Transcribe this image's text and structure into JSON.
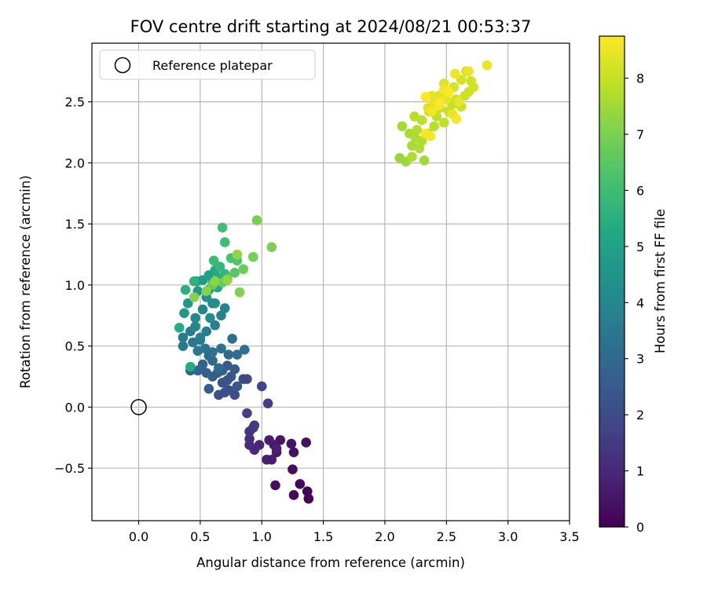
{
  "chart_data": {
    "type": "scatter",
    "title": "FOV centre drift starting at 2024/08/21 00:53:37",
    "xlabel": "Angular distance from reference (arcmin)",
    "ylabel": "Rotation from reference (arcmin)",
    "xlim": [
      -0.38,
      3.5
    ],
    "ylim": [
      -0.93,
      2.98
    ],
    "xticks": [
      0.0,
      0.5,
      1.0,
      1.5,
      2.0,
      2.5,
      3.0,
      3.5
    ],
    "xtick_labels": [
      "0.0",
      "0.5",
      "1.0",
      "1.5",
      "2.0",
      "2.5",
      "3.0",
      "3.5"
    ],
    "yticks": [
      -0.5,
      0.0,
      0.5,
      1.0,
      1.5,
      2.0,
      2.5
    ],
    "ytick_labels": [
      "−0.5",
      "0.0",
      "0.5",
      "1.0",
      "1.5",
      "2.0",
      "2.5"
    ],
    "grid": true,
    "legend": {
      "location": "upper-left",
      "entries": [
        "Reference platepar"
      ]
    },
    "reference_point": {
      "x": 0.0,
      "y": 0.0,
      "marker": "hollow-circle"
    },
    "colorbar": {
      "label": "Hours from first FF file",
      "colormap": "viridis",
      "range": [
        0,
        8.75
      ],
      "ticks": [
        0,
        1,
        2,
        3,
        4,
        5,
        6,
        7,
        8
      ],
      "tick_labels": [
        "0",
        "1",
        "2",
        "3",
        "4",
        "5",
        "6",
        "7",
        "8"
      ]
    },
    "points": [
      {
        "x": 1.38,
        "y": -0.75,
        "t": 0.05
      },
      {
        "x": 1.37,
        "y": -0.69,
        "t": 0.1
      },
      {
        "x": 1.31,
        "y": -0.63,
        "t": 0.15
      },
      {
        "x": 1.26,
        "y": -0.72,
        "t": 0.2
      },
      {
        "x": 1.25,
        "y": -0.51,
        "t": 0.25
      },
      {
        "x": 1.11,
        "y": -0.64,
        "t": 0.3
      },
      {
        "x": 1.36,
        "y": -0.29,
        "t": 0.35
      },
      {
        "x": 1.26,
        "y": -0.37,
        "t": 0.4
      },
      {
        "x": 1.24,
        "y": -0.3,
        "t": 0.45
      },
      {
        "x": 1.15,
        "y": -0.27,
        "t": 0.5
      },
      {
        "x": 1.12,
        "y": -0.37,
        "t": 0.55
      },
      {
        "x": 1.1,
        "y": -0.31,
        "t": 0.6
      },
      {
        "x": 1.08,
        "y": -0.43,
        "t": 0.65
      },
      {
        "x": 1.06,
        "y": -0.27,
        "t": 0.7
      },
      {
        "x": 1.04,
        "y": -0.43,
        "t": 0.75
      },
      {
        "x": 1.12,
        "y": -0.34,
        "t": 0.8
      },
      {
        "x": 0.98,
        "y": -0.31,
        "t": 0.9
      },
      {
        "x": 0.94,
        "y": -0.35,
        "t": 1.0
      },
      {
        "x": 0.9,
        "y": -0.31,
        "t": 1.1
      },
      {
        "x": 0.9,
        "y": -0.26,
        "t": 1.2
      },
      {
        "x": 0.9,
        "y": -0.2,
        "t": 1.3
      },
      {
        "x": 0.93,
        "y": -0.17,
        "t": 1.4
      },
      {
        "x": 0.94,
        "y": -0.15,
        "t": 1.5
      },
      {
        "x": 0.88,
        "y": -0.05,
        "t": 1.6
      },
      {
        "x": 1.05,
        "y": 0.03,
        "t": 1.7
      },
      {
        "x": 1.0,
        "y": 0.17,
        "t": 1.8
      },
      {
        "x": 0.88,
        "y": 0.23,
        "t": 1.9
      },
      {
        "x": 0.85,
        "y": 0.23,
        "t": 1.95
      },
      {
        "x": 0.73,
        "y": 0.14,
        "t": 2.0
      },
      {
        "x": 0.78,
        "y": 0.1,
        "t": 2.05
      },
      {
        "x": 0.7,
        "y": 0.12,
        "t": 2.1
      },
      {
        "x": 0.65,
        "y": 0.1,
        "t": 2.15
      },
      {
        "x": 0.68,
        "y": 0.2,
        "t": 2.2
      },
      {
        "x": 0.72,
        "y": 0.22,
        "t": 2.25
      },
      {
        "x": 0.75,
        "y": 0.25,
        "t": 2.3
      },
      {
        "x": 0.8,
        "y": 0.17,
        "t": 2.35
      },
      {
        "x": 0.72,
        "y": 0.34,
        "t": 2.4
      },
      {
        "x": 0.78,
        "y": 0.31,
        "t": 2.45
      },
      {
        "x": 0.68,
        "y": 0.3,
        "t": 2.5
      },
      {
        "x": 0.64,
        "y": 0.28,
        "t": 2.55
      },
      {
        "x": 0.6,
        "y": 0.25,
        "t": 2.6
      },
      {
        "x": 0.57,
        "y": 0.15,
        "t": 2.65
      },
      {
        "x": 0.55,
        "y": 0.28,
        "t": 2.7
      },
      {
        "x": 0.52,
        "y": 0.35,
        "t": 2.75
      },
      {
        "x": 0.48,
        "y": 0.3,
        "t": 2.8
      },
      {
        "x": 0.42,
        "y": 0.3,
        "t": 2.85
      },
      {
        "x": 0.57,
        "y": 0.42,
        "t": 2.9
      },
      {
        "x": 0.6,
        "y": 0.38,
        "t": 2.95
      },
      {
        "x": 0.65,
        "y": 0.32,
        "t": 3.0
      },
      {
        "x": 0.73,
        "y": 0.43,
        "t": 3.05
      },
      {
        "x": 0.8,
        "y": 0.43,
        "t": 3.1
      },
      {
        "x": 0.86,
        "y": 0.47,
        "t": 3.15
      },
      {
        "x": 0.76,
        "y": 0.56,
        "t": 3.2
      },
      {
        "x": 0.67,
        "y": 0.48,
        "t": 3.25
      },
      {
        "x": 0.6,
        "y": 0.45,
        "t": 3.3
      },
      {
        "x": 0.54,
        "y": 0.48,
        "t": 3.35
      },
      {
        "x": 0.5,
        "y": 0.55,
        "t": 3.4
      },
      {
        "x": 0.48,
        "y": 0.46,
        "t": 3.45
      },
      {
        "x": 0.44,
        "y": 0.53,
        "t": 3.5
      },
      {
        "x": 0.36,
        "y": 0.5,
        "t": 3.55
      },
      {
        "x": 0.36,
        "y": 0.57,
        "t": 3.6
      },
      {
        "x": 0.42,
        "y": 0.62,
        "t": 3.65
      },
      {
        "x": 0.5,
        "y": 0.57,
        "t": 3.7
      },
      {
        "x": 0.55,
        "y": 0.62,
        "t": 3.75
      },
      {
        "x": 0.62,
        "y": 0.67,
        "t": 3.8
      },
      {
        "x": 0.67,
        "y": 0.75,
        "t": 3.85
      },
      {
        "x": 0.7,
        "y": 0.81,
        "t": 3.9
      },
      {
        "x": 0.6,
        "y": 0.85,
        "t": 3.95
      },
      {
        "x": 0.52,
        "y": 0.8,
        "t": 4.0
      },
      {
        "x": 0.46,
        "y": 0.73,
        "t": 4.05
      },
      {
        "x": 0.46,
        "y": 0.66,
        "t": 4.1
      },
      {
        "x": 0.58,
        "y": 0.73,
        "t": 4.2
      },
      {
        "x": 0.62,
        "y": 0.85,
        "t": 4.3
      },
      {
        "x": 0.55,
        "y": 0.9,
        "t": 4.4
      },
      {
        "x": 0.57,
        "y": 0.96,
        "t": 4.45
      },
      {
        "x": 0.48,
        "y": 0.95,
        "t": 4.5
      },
      {
        "x": 0.4,
        "y": 0.85,
        "t": 4.55
      },
      {
        "x": 0.37,
        "y": 0.77,
        "t": 4.6
      },
      {
        "x": 0.47,
        "y": 1.03,
        "t": 4.7
      },
      {
        "x": 0.52,
        "y": 1.04,
        "t": 4.8
      },
      {
        "x": 0.57,
        "y": 1.08,
        "t": 4.9
      },
      {
        "x": 0.6,
        "y": 1.02,
        "t": 5.0
      },
      {
        "x": 0.64,
        "y": 0.98,
        "t": 5.1
      },
      {
        "x": 0.62,
        "y": 1.12,
        "t": 5.2
      },
      {
        "x": 0.65,
        "y": 1.06,
        "t": 5.3
      },
      {
        "x": 0.42,
        "y": 0.33,
        "t": 5.35
      },
      {
        "x": 0.33,
        "y": 0.65,
        "t": 5.4
      },
      {
        "x": 0.38,
        "y": 0.96,
        "t": 5.5
      },
      {
        "x": 0.45,
        "y": 1.03,
        "t": 5.6
      },
      {
        "x": 0.7,
        "y": 1.09,
        "t": 5.7
      },
      {
        "x": 0.66,
        "y": 1.15,
        "t": 5.8
      },
      {
        "x": 0.61,
        "y": 1.2,
        "t": 5.9
      },
      {
        "x": 0.7,
        "y": 1.35,
        "t": 6.0
      },
      {
        "x": 0.68,
        "y": 1.47,
        "t": 6.1
      },
      {
        "x": 0.75,
        "y": 1.22,
        "t": 6.2
      },
      {
        "x": 0.8,
        "y": 1.2,
        "t": 6.3
      },
      {
        "x": 0.78,
        "y": 1.1,
        "t": 6.4
      },
      {
        "x": 0.72,
        "y": 1.05,
        "t": 6.5
      },
      {
        "x": 0.68,
        "y": 1.02,
        "t": 6.6
      },
      {
        "x": 0.6,
        "y": 1.0,
        "t": 6.7
      },
      {
        "x": 0.85,
        "y": 1.13,
        "t": 6.8
      },
      {
        "x": 0.93,
        "y": 1.23,
        "t": 6.9
      },
      {
        "x": 0.96,
        "y": 1.53,
        "t": 6.95
      },
      {
        "x": 1.08,
        "y": 1.31,
        "t": 7.0
      },
      {
        "x": 0.82,
        "y": 0.94,
        "t": 7.05
      },
      {
        "x": 0.45,
        "y": 0.9,
        "t": 7.1
      },
      {
        "x": 0.55,
        "y": 0.95,
        "t": 7.15
      },
      {
        "x": 0.62,
        "y": 1.03,
        "t": 7.2
      },
      {
        "x": 0.72,
        "y": 1.04,
        "t": 7.25
      },
      {
        "x": 0.8,
        "y": 1.25,
        "t": 7.3
      },
      {
        "x": 2.12,
        "y": 2.04,
        "t": 7.4
      },
      {
        "x": 2.17,
        "y": 2.01,
        "t": 7.45
      },
      {
        "x": 2.32,
        "y": 2.02,
        "t": 7.5
      },
      {
        "x": 2.14,
        "y": 2.3,
        "t": 7.55
      },
      {
        "x": 2.2,
        "y": 2.24,
        "t": 7.6
      },
      {
        "x": 2.22,
        "y": 2.14,
        "t": 7.62
      },
      {
        "x": 2.25,
        "y": 2.2,
        "t": 7.65
      },
      {
        "x": 2.28,
        "y": 2.12,
        "t": 7.68
      },
      {
        "x": 2.22,
        "y": 2.05,
        "t": 7.7
      },
      {
        "x": 2.26,
        "y": 2.27,
        "t": 7.72
      },
      {
        "x": 2.3,
        "y": 2.18,
        "t": 7.75
      },
      {
        "x": 2.35,
        "y": 2.24,
        "t": 7.78
      },
      {
        "x": 2.4,
        "y": 2.3,
        "t": 7.8
      },
      {
        "x": 2.24,
        "y": 2.38,
        "t": 7.82
      },
      {
        "x": 2.3,
        "y": 2.35,
        "t": 7.85
      },
      {
        "x": 2.36,
        "y": 2.42,
        "t": 7.88
      },
      {
        "x": 2.42,
        "y": 2.38,
        "t": 7.9
      },
      {
        "x": 2.45,
        "y": 2.45,
        "t": 7.92
      },
      {
        "x": 2.48,
        "y": 2.33,
        "t": 7.95
      },
      {
        "x": 2.52,
        "y": 2.42,
        "t": 7.98
      },
      {
        "x": 2.55,
        "y": 2.48,
        "t": 8.0
      },
      {
        "x": 2.58,
        "y": 2.52,
        "t": 8.02
      },
      {
        "x": 2.62,
        "y": 2.46,
        "t": 8.05
      },
      {
        "x": 2.65,
        "y": 2.55,
        "t": 8.08
      },
      {
        "x": 2.68,
        "y": 2.58,
        "t": 8.1
      },
      {
        "x": 2.7,
        "y": 2.67,
        "t": 8.12
      },
      {
        "x": 2.72,
        "y": 2.62,
        "t": 8.15
      },
      {
        "x": 2.66,
        "y": 2.75,
        "t": 8.18
      },
      {
        "x": 2.62,
        "y": 2.68,
        "t": 8.2
      },
      {
        "x": 2.56,
        "y": 2.62,
        "t": 8.22
      },
      {
        "x": 2.52,
        "y": 2.58,
        "t": 8.25
      },
      {
        "x": 2.48,
        "y": 2.65,
        "t": 8.28
      },
      {
        "x": 2.44,
        "y": 2.55,
        "t": 8.3
      },
      {
        "x": 2.4,
        "y": 2.5,
        "t": 8.32
      },
      {
        "x": 2.35,
        "y": 2.45,
        "t": 8.35
      },
      {
        "x": 2.38,
        "y": 2.55,
        "t": 8.38
      },
      {
        "x": 2.42,
        "y": 2.48,
        "t": 8.4
      },
      {
        "x": 2.5,
        "y": 2.52,
        "t": 8.42
      },
      {
        "x": 2.55,
        "y": 2.4,
        "t": 8.45
      },
      {
        "x": 2.6,
        "y": 2.5,
        "t": 8.48
      },
      {
        "x": 2.83,
        "y": 2.8,
        "t": 8.5
      },
      {
        "x": 2.68,
        "y": 2.75,
        "t": 8.52
      },
      {
        "x": 2.57,
        "y": 2.73,
        "t": 8.55
      },
      {
        "x": 2.48,
        "y": 2.6,
        "t": 8.58
      },
      {
        "x": 2.45,
        "y": 2.5,
        "t": 8.6
      },
      {
        "x": 2.38,
        "y": 2.42,
        "t": 8.62
      },
      {
        "x": 2.33,
        "y": 2.24,
        "t": 8.64
      },
      {
        "x": 2.37,
        "y": 2.22,
        "t": 8.66
      },
      {
        "x": 2.58,
        "y": 2.36,
        "t": 8.68
      },
      {
        "x": 2.44,
        "y": 2.47,
        "t": 8.7
      },
      {
        "x": 2.33,
        "y": 2.54,
        "t": 8.72
      },
      {
        "x": 2.52,
        "y": 2.58,
        "t": 8.75
      }
    ]
  }
}
